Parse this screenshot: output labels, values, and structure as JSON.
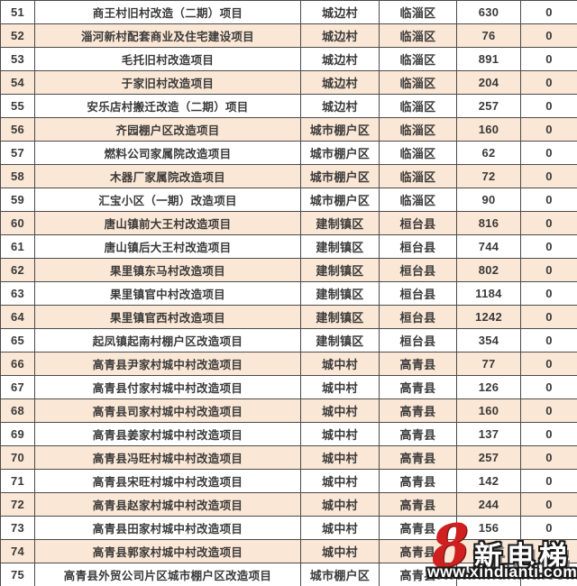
{
  "colors": {
    "row_stripe": "#fbe7d5",
    "row_plain": "#ffffff",
    "grid_border": "#4b4b4b",
    "text": "#3a3a3a",
    "watermark_red": "#cf1f1f"
  },
  "table": {
    "rows": [
      {
        "no": "51",
        "name": "商王村旧村改造（二期）项目",
        "type": "城边村",
        "district": "临淄区",
        "value": "630",
        "extra": "0"
      },
      {
        "no": "52",
        "name": "淄河新村配套商业及住宅建设项目",
        "type": "城边村",
        "district": "临淄区",
        "value": "76",
        "extra": "0"
      },
      {
        "no": "53",
        "name": "毛托旧村改造项目",
        "type": "城边村",
        "district": "临淄区",
        "value": "891",
        "extra": "0"
      },
      {
        "no": "54",
        "name": "于家旧村改造项目",
        "type": "城边村",
        "district": "临淄区",
        "value": "204",
        "extra": "0"
      },
      {
        "no": "55",
        "name": "安乐店村搬迁改造（二期）项目",
        "type": "城边村",
        "district": "临淄区",
        "value": "257",
        "extra": "0"
      },
      {
        "no": "56",
        "name": "齐园棚户区改造项目",
        "type": "城市棚户区",
        "district": "临淄区",
        "value": "160",
        "extra": "0"
      },
      {
        "no": "57",
        "name": "燃料公司家属院改造项目",
        "type": "城市棚户区",
        "district": "临淄区",
        "value": "62",
        "extra": "0"
      },
      {
        "no": "58",
        "name": "木器厂家属院改造项目",
        "type": "城市棚户区",
        "district": "临淄区",
        "value": "72",
        "extra": "0"
      },
      {
        "no": "59",
        "name": "汇宝小区（一期）改造项目",
        "type": "城市棚户区",
        "district": "临淄区",
        "value": "90",
        "extra": "0"
      },
      {
        "no": "60",
        "name": "唐山镇前大王村改造项目",
        "type": "建制镇区",
        "district": "桓台县",
        "value": "816",
        "extra": "0"
      },
      {
        "no": "61",
        "name": "唐山镇后大王村改造项目",
        "type": "建制镇区",
        "district": "桓台县",
        "value": "744",
        "extra": "0"
      },
      {
        "no": "62",
        "name": "果里镇东马村改造项目",
        "type": "建制镇区",
        "district": "桓台县",
        "value": "802",
        "extra": "0"
      },
      {
        "no": "63",
        "name": "果里镇官中村改造项目",
        "type": "建制镇区",
        "district": "桓台县",
        "value": "1184",
        "extra": "0"
      },
      {
        "no": "64",
        "name": "果里镇官西村改造项目",
        "type": "建制镇区",
        "district": "桓台县",
        "value": "1242",
        "extra": "0"
      },
      {
        "no": "65",
        "name": "起凤镇起南村棚户区改造项目",
        "type": "建制镇区",
        "district": "桓台县",
        "value": "354",
        "extra": "0"
      },
      {
        "no": "66",
        "name": "高青县尹家村城中村改造项目",
        "type": "城中村",
        "district": "高青县",
        "value": "77",
        "extra": "0"
      },
      {
        "no": "67",
        "name": "高青县付家村城中村改造项目",
        "type": "城中村",
        "district": "高青县",
        "value": "126",
        "extra": "0"
      },
      {
        "no": "68",
        "name": "高青县司家村城中村改造项目",
        "type": "城中村",
        "district": "高青县",
        "value": "160",
        "extra": "0"
      },
      {
        "no": "69",
        "name": "高青县姜家村城中村改造项目",
        "type": "城中村",
        "district": "高青县",
        "value": "137",
        "extra": "0"
      },
      {
        "no": "70",
        "name": "高青县冯旺村城中村改造项目",
        "type": "城中村",
        "district": "高青县",
        "value": "257",
        "extra": "0"
      },
      {
        "no": "71",
        "name": "高青县宋旺村城中村改造项目",
        "type": "城中村",
        "district": "高青县",
        "value": "142",
        "extra": "0"
      },
      {
        "no": "72",
        "name": "高青县赵家村城中村改造项目",
        "type": "城中村",
        "district": "高青县",
        "value": "244",
        "extra": "0"
      },
      {
        "no": "73",
        "name": "高青县田家村城中村改造项目",
        "type": "城中村",
        "district": "高青县",
        "value": "156",
        "extra": "0"
      },
      {
        "no": "74",
        "name": "高青县郭家村城中村改造项目",
        "type": "城中村",
        "district": "高青县",
        "value": "146",
        "extra": "0"
      },
      {
        "no": "75",
        "name": "高青县外贸公司片区城市棚户区改造项目",
        "type": "城市棚户区",
        "district": "高青县",
        "value": "",
        "extra": "0"
      }
    ]
  },
  "watermark": {
    "logo_figure": "8",
    "logo_text": "新电梯",
    "url": "www.xindianti.com"
  }
}
